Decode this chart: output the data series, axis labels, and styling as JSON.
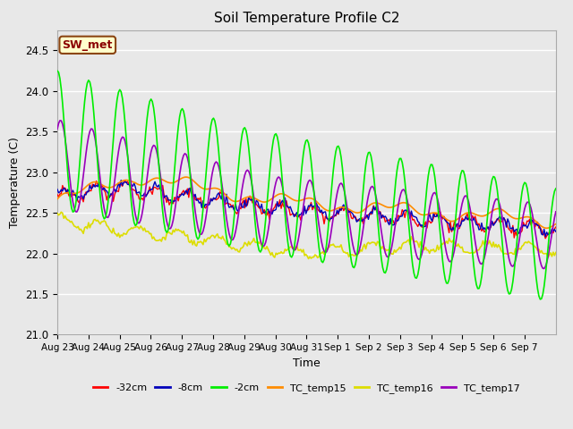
{
  "title": "Soil Temperature Profile C2",
  "xlabel": "Time",
  "ylabel": "Temperature (C)",
  "ylim": [
    21.0,
    24.75
  ],
  "yticks": [
    21.0,
    21.5,
    22.0,
    22.5,
    23.0,
    23.5,
    24.0,
    24.5
  ],
  "plot_bg_color": "#e8e8e8",
  "grid_color": "#ffffff",
  "annotation_text": "SW_met",
  "annotation_color": "#8b0000",
  "annotation_bg": "#ffffcc",
  "annotation_border": "#8b4513",
  "colors": {
    "neg32cm": "#ff0000",
    "neg8cm": "#0000bb",
    "neg2cm": "#00ee00",
    "TC_temp15": "#ff8c00",
    "TC_temp16": "#dddd00",
    "TC_temp17": "#9900bb"
  },
  "tick_labels": [
    "Aug 23",
    "Aug 24",
    "Aug 25",
    "Aug 26",
    "Aug 27",
    "Aug 28",
    "Aug 29",
    "Aug 30",
    "Aug 31",
    "Sep 1",
    "Sep 2",
    "Sep 3",
    "Sep 4",
    "Sep 5",
    "Sep 6",
    "Sep 7"
  ],
  "legend_labels": [
    "-32cm",
    "-8cm",
    "-2cm",
    "TC_temp15",
    "TC_temp16",
    "TC_temp17"
  ]
}
